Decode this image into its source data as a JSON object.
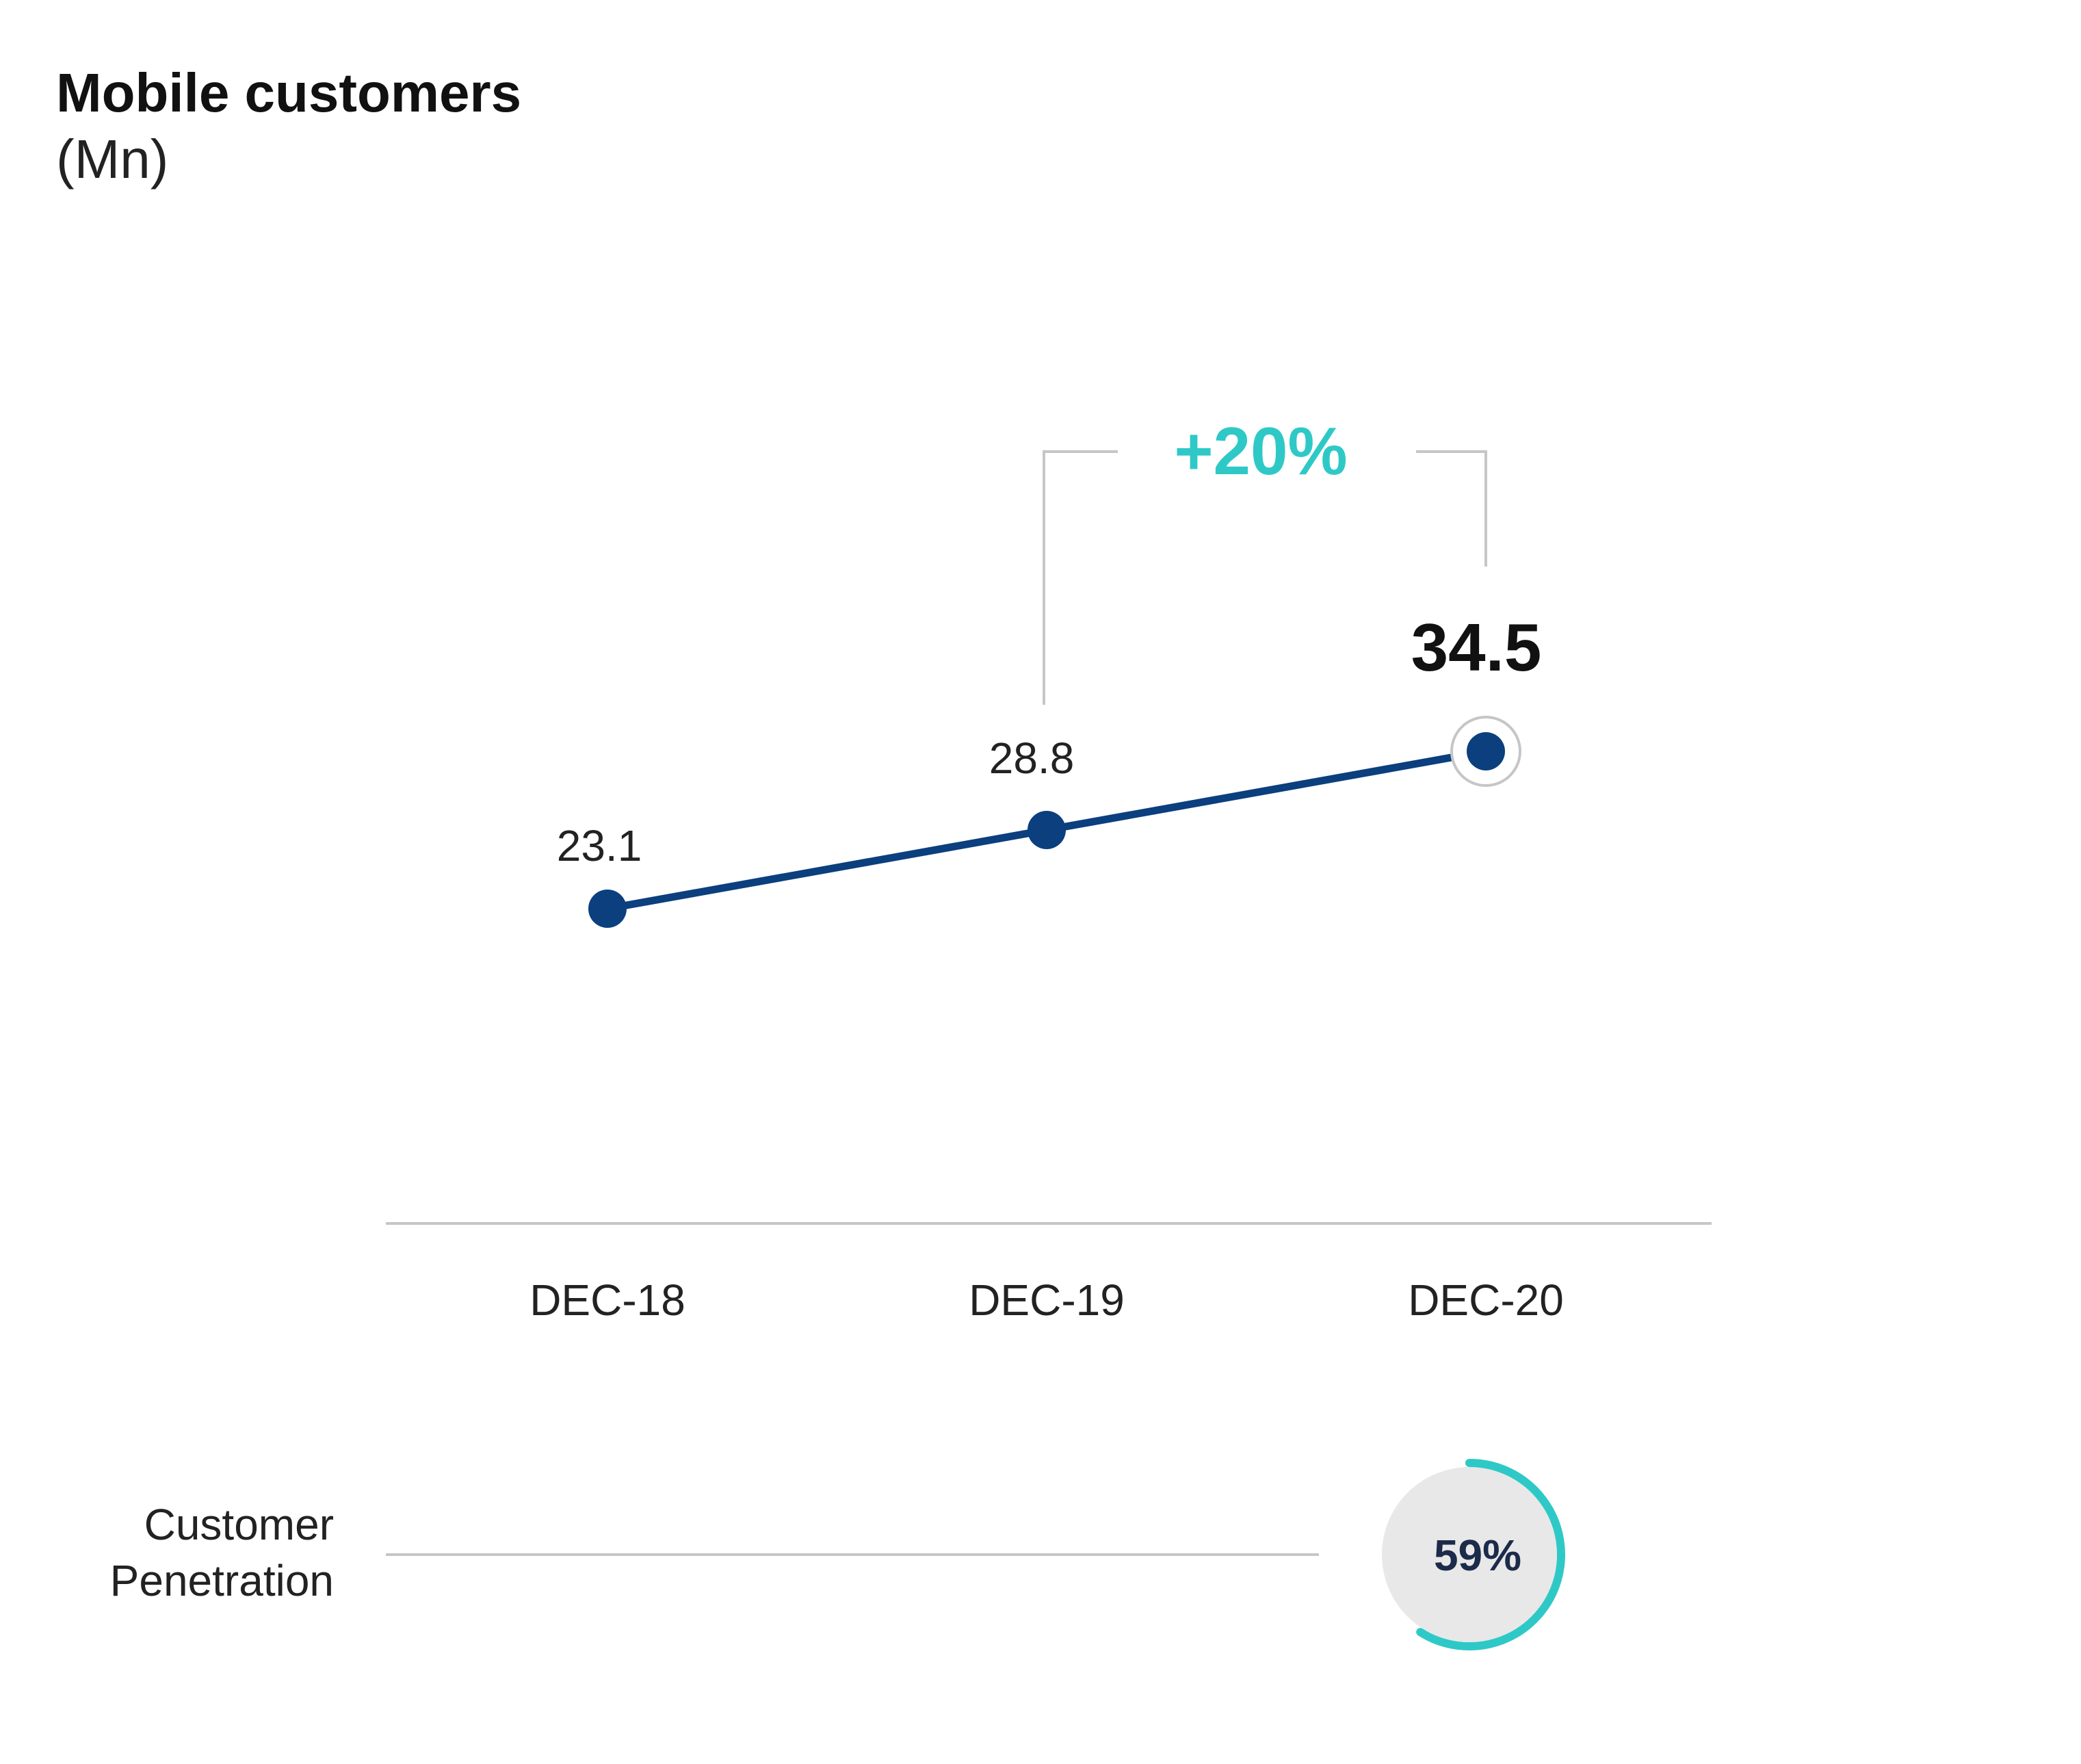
{
  "colors": {
    "line": "#0b3f7e",
    "accent": "#2ec9c7",
    "axis": "#c6c6c6",
    "ring_track": "#e8e8e8",
    "penetration_text": "#1c2b4a"
  },
  "chart_data": {
    "type": "line",
    "title": "Mobile customers",
    "subtitle": "(Mn)",
    "categories": [
      "DEC-18",
      "DEC-19",
      "DEC-20"
    ],
    "series": [
      {
        "values": [
          23.1,
          28.8,
          34.5
        ]
      }
    ],
    "data_labels": [
      "23.1",
      "28.8",
      "34.5"
    ],
    "highlight_index": 2,
    "growth": {
      "label": "+20%",
      "from_index": 1,
      "to_index": 2
    },
    "grid": false,
    "penetration": {
      "label_lines": [
        "Customer",
        "Penetration"
      ],
      "value": 59,
      "value_label": "59%",
      "category_index": 2
    }
  }
}
